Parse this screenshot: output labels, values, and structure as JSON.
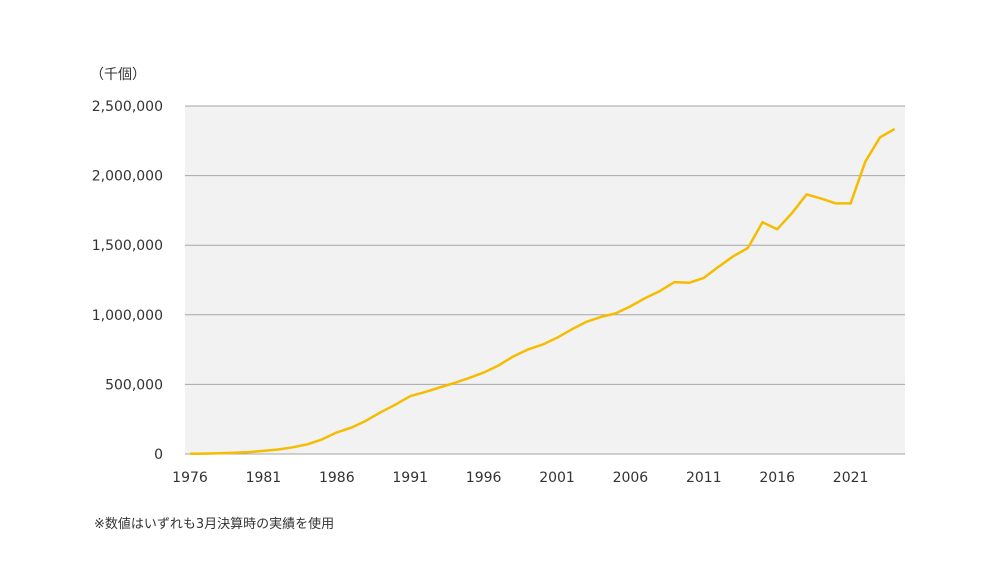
{
  "unit_label": "（千個）",
  "footnote": "※数値はいずれも3月決算時の実績を使用",
  "colors": {
    "line": "#F5BC00",
    "plot_bg": "#F2F2F2",
    "grid": "#A6A6A6",
    "text": "#333333"
  },
  "chart_data": {
    "type": "line",
    "title": "",
    "xlabel": "",
    "ylabel": "（千個）",
    "ylim": [
      0,
      2500000
    ],
    "xlim": [
      1976,
      2024
    ],
    "grid": true,
    "legend": "none",
    "x_ticks": [
      1976,
      1981,
      1986,
      1991,
      1996,
      2001,
      2006,
      2011,
      2016,
      2021
    ],
    "y_ticks": [
      0,
      500000,
      1000000,
      1500000,
      2000000,
      2500000
    ],
    "y_tick_labels": [
      "0",
      "500,000",
      "1,000,000",
      "1,500,000",
      "2,000,000",
      "2,500,000"
    ],
    "series": [
      {
        "x": [
          1976,
          1977,
          1978,
          1979,
          1980,
          1981,
          1982,
          1983,
          1984,
          1985,
          1986,
          1987,
          1988,
          1989,
          1990,
          1991,
          1992,
          1993,
          1994,
          1995,
          1996,
          1997,
          1998,
          1999,
          2000,
          2001,
          2002,
          2003,
          2004,
          2005,
          2006,
          2007,
          2008,
          2009,
          2010,
          2011,
          2012,
          2013,
          2014,
          2015,
          2016,
          2017,
          2018,
          2019,
          2020,
          2021,
          2022,
          2023,
          2024
        ],
        "values": [
          2000,
          3000,
          5000,
          9000,
          14000,
          22000,
          32000,
          48000,
          70000,
          105000,
          155000,
          190000,
          240000,
          300000,
          355000,
          415000,
          445000,
          478000,
          510000,
          545000,
          585000,
          635000,
          700000,
          750000,
          785000,
          835000,
          895000,
          950000,
          985000,
          1010000,
          1060000,
          1120000,
          1170000,
          1235000,
          1230000,
          1265000,
          1345000,
          1420000,
          1480000,
          1665000,
          1615000,
          1730000,
          1865000,
          1835000,
          1800000,
          1800000,
          2100000,
          2275000,
          2335000
        ]
      }
    ]
  }
}
